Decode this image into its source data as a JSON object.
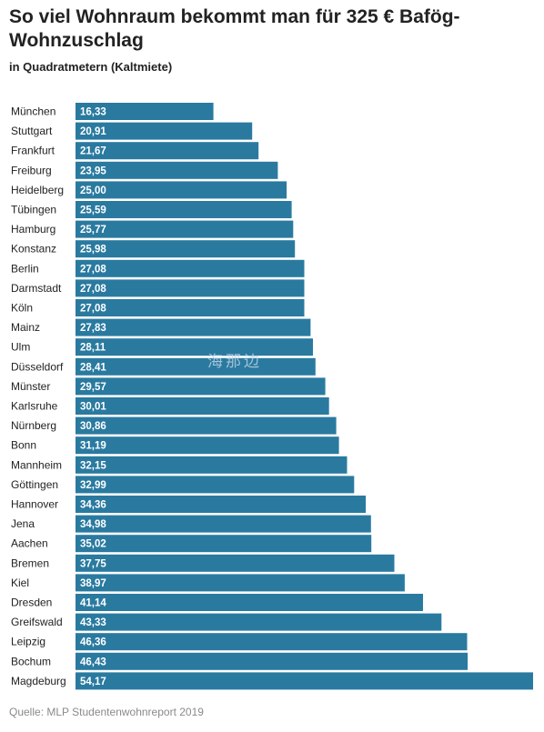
{
  "header": {
    "title": "So viel Wohnraum bekommt man für 325 € Bafög-Wohnzuschlag",
    "subtitle": "in Quadratmetern (Kaltmiete)"
  },
  "footer": {
    "source": "Quelle: MLP Studentenwohnreport 2019"
  },
  "watermark": {
    "text": "海那边"
  },
  "colors": {
    "bar": "#2a7aa0",
    "value_text": "#ffffff"
  },
  "chart_data": {
    "type": "bar",
    "orientation": "horizontal",
    "categories": [
      "München",
      "Stuttgart",
      "Frankfurt",
      "Freiburg",
      "Heidelberg",
      "Tübingen",
      "Hamburg",
      "Konstanz",
      "Berlin",
      "Darmstadt",
      "Köln",
      "Mainz",
      "Ulm",
      "Düsseldorf",
      "Münster",
      "Karlsruhe",
      "Nürnberg",
      "Bonn",
      "Mannheim",
      "Göttingen",
      "Hannover",
      "Jena",
      "Aachen",
      "Bremen",
      "Kiel",
      "Dresden",
      "Greifswald",
      "Leipzig",
      "Bochum",
      "Magdeburg"
    ],
    "values": [
      16.33,
      20.91,
      21.67,
      23.95,
      25.0,
      25.59,
      25.77,
      25.98,
      27.08,
      27.08,
      27.08,
      27.83,
      28.11,
      28.41,
      29.57,
      30.01,
      30.86,
      31.19,
      32.15,
      32.99,
      34.36,
      34.98,
      35.02,
      37.75,
      38.97,
      41.14,
      43.33,
      46.36,
      46.43,
      54.17
    ],
    "value_labels": [
      "16,33",
      "20,91",
      "21,67",
      "23,95",
      "25,00",
      "25,59",
      "25,77",
      "25,98",
      "27,08",
      "27,08",
      "27,08",
      "27,83",
      "28,11",
      "28,41",
      "29,57",
      "30,01",
      "30,86",
      "31,19",
      "32,15",
      "32,99",
      "34,36",
      "34,98",
      "35,02",
      "37,75",
      "38,97",
      "41,14",
      "43,33",
      "46,36",
      "46,43",
      "54,17"
    ],
    "title": "So viel Wohnraum bekommt man für 325 € Bafög-Wohnzuschlag",
    "subtitle": "in Quadratmetern (Kaltmiete)",
    "xlabel": "",
    "ylabel": "",
    "xlim": [
      0,
      54.17
    ],
    "grid": false,
    "legend": "none"
  }
}
